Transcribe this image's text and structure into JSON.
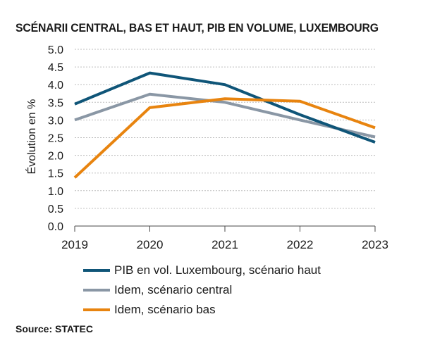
{
  "title": "SCÉNARII CENTRAL, BAS ET HAUT, PIB EN VOLUME, LUXEMBOURG",
  "source": "Source: STATEC",
  "chart_data": {
    "type": "line",
    "x": [
      "2019",
      "2020",
      "2021",
      "2022",
      "2023"
    ],
    "ylabel": "Évolution en %",
    "xlabel": "",
    "ylim": [
      0.0,
      5.0
    ],
    "yticks": [
      "0.0",
      "0.5",
      "1.0",
      "1.5",
      "2.0",
      "2.5",
      "3.0",
      "3.5",
      "4.0",
      "4.5",
      "5.0"
    ],
    "grid": "horizontal",
    "legend_position": "bottom",
    "series": [
      {
        "name": "PIB en vol. Luxembourg, scénario haut",
        "color": "#0f5578",
        "values": [
          3.45,
          4.33,
          4.0,
          3.15,
          2.37
        ]
      },
      {
        "name": "Idem, scénario central",
        "color": "#8a97a5",
        "values": [
          3.0,
          3.73,
          3.5,
          3.0,
          2.52
        ]
      },
      {
        "name": "Idem, scénario bas",
        "color": "#e8840f",
        "values": [
          1.37,
          3.35,
          3.6,
          3.53,
          2.78
        ]
      }
    ]
  }
}
